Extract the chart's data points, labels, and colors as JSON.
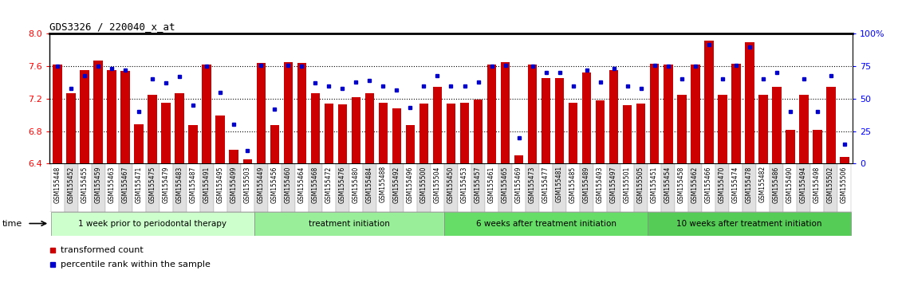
{
  "title": "GDS3326 / 220040_x_at",
  "samples": [
    "GSM155448",
    "GSM155452",
    "GSM155455",
    "GSM155459",
    "GSM155463",
    "GSM155467",
    "GSM155471",
    "GSM155475",
    "GSM155479",
    "GSM155483",
    "GSM155487",
    "GSM155491",
    "GSM155495",
    "GSM155499",
    "GSM155503",
    "GSM155449",
    "GSM155456",
    "GSM155460",
    "GSM155464",
    "GSM155468",
    "GSM155472",
    "GSM155476",
    "GSM155480",
    "GSM155484",
    "GSM155488",
    "GSM155492",
    "GSM155496",
    "GSM155500",
    "GSM155504",
    "GSM155450",
    "GSM155453",
    "GSM155457",
    "GSM155461",
    "GSM155465",
    "GSM155469",
    "GSM155473",
    "GSM155477",
    "GSM155481",
    "GSM155485",
    "GSM155489",
    "GSM155493",
    "GSM155497",
    "GSM155501",
    "GSM155505",
    "GSM155451",
    "GSM155454",
    "GSM155458",
    "GSM155462",
    "GSM155466",
    "GSM155470",
    "GSM155474",
    "GSM155478",
    "GSM155482",
    "GSM155486",
    "GSM155490",
    "GSM155494",
    "GSM155498",
    "GSM155502",
    "GSM155506"
  ],
  "red_values": [
    7.62,
    7.27,
    7.55,
    7.67,
    7.55,
    7.54,
    6.88,
    7.25,
    7.15,
    7.27,
    6.87,
    7.62,
    6.99,
    6.57,
    6.45,
    7.64,
    6.87,
    7.65,
    7.64,
    7.27,
    7.14,
    7.13,
    7.22,
    7.27,
    7.15,
    7.08,
    6.87,
    7.14,
    7.35,
    7.14,
    7.15,
    7.19,
    7.62,
    7.65,
    6.5,
    7.62,
    7.45,
    7.45,
    7.15,
    7.52,
    7.18,
    7.55,
    7.12,
    7.14,
    7.63,
    7.62,
    7.25,
    7.62,
    7.92,
    7.25,
    7.63,
    7.9,
    7.25,
    7.35,
    6.82,
    7.25,
    6.82,
    7.35,
    6.48
  ],
  "blue_values": [
    75,
    58,
    68,
    75,
    73,
    72,
    40,
    65,
    62,
    67,
    45,
    75,
    55,
    30,
    10,
    76,
    42,
    76,
    75,
    62,
    60,
    58,
    63,
    64,
    60,
    57,
    43,
    60,
    68,
    60,
    60,
    63,
    75,
    76,
    20,
    75,
    70,
    70,
    60,
    72,
    63,
    73,
    60,
    58,
    76,
    75,
    65,
    75,
    92,
    65,
    76,
    90,
    65,
    70,
    40,
    65,
    40,
    68,
    15
  ],
  "groups": [
    {
      "label": "1 week prior to periodontal therapy",
      "start": 0,
      "end": 15,
      "color": "#ccffcc"
    },
    {
      "label": "treatment initiation",
      "start": 15,
      "end": 29,
      "color": "#99ee99"
    },
    {
      "label": "6 weeks after treatment initiation",
      "start": 29,
      "end": 44,
      "color": "#66dd66"
    },
    {
      "label": "10 weeks after treatment initiation",
      "start": 44,
      "end": 59,
      "color": "#55cc55"
    }
  ],
  "ylim_left": [
    6.4,
    8.0
  ],
  "ylim_right": [
    0,
    100
  ],
  "yticks_left": [
    6.4,
    6.8,
    7.2,
    7.6,
    8.0
  ],
  "yticks_right": [
    0,
    25,
    50,
    75,
    100
  ],
  "ytick_labels_right": [
    "0",
    "25",
    "50",
    "75",
    "100%"
  ],
  "hlines": [
    7.6,
    7.2,
    6.8
  ],
  "bar_color": "#cc0000",
  "dot_color": "#0000cc",
  "bar_bottom": 6.4,
  "bg_color": "#ffffff",
  "tick_label_fontsize": 5.5,
  "legend_red_label": "transformed count",
  "legend_blue_label": "percentile rank within the sample",
  "group_border_color": "#888888",
  "cell_colors": [
    "#ffffff",
    "#e0e0e0"
  ]
}
